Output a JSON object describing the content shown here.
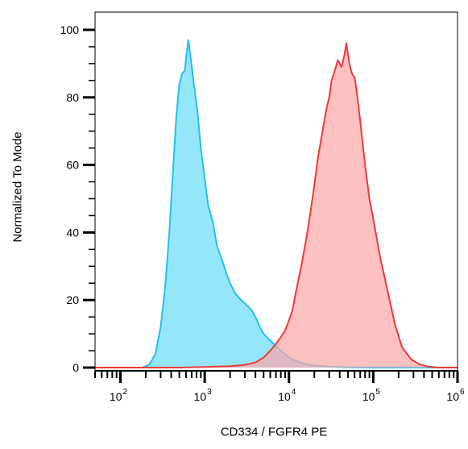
{
  "chart_data": {
    "type": "area",
    "xlabel": "CD334 / FGFR4 PE",
    "ylabel": "Normalized To Mode",
    "xscale": "log",
    "xlim": [
      50,
      1000000
    ],
    "ylim": [
      0,
      100
    ],
    "grid": false,
    "x_ticks": [
      {
        "value": 100,
        "base": "10",
        "exp": "2"
      },
      {
        "value": 1000,
        "base": "10",
        "exp": "3"
      },
      {
        "value": 10000,
        "base": "10",
        "exp": "4"
      },
      {
        "value": 100000,
        "base": "10",
        "exp": "5"
      },
      {
        "value": 1000000,
        "base": "10",
        "exp": "6"
      }
    ],
    "y_ticks": [
      "0",
      "20",
      "40",
      "60",
      "80",
      "100"
    ],
    "series": [
      {
        "stroke": "#22c0ee",
        "fill": "#96e6fa",
        "points": [
          [
            50,
            0
          ],
          [
            180,
            0
          ],
          [
            220,
            0.8
          ],
          [
            260,
            4
          ],
          [
            300,
            12
          ],
          [
            340,
            24
          ],
          [
            380,
            40
          ],
          [
            420,
            58
          ],
          [
            460,
            74
          ],
          [
            500,
            84
          ],
          [
            540,
            87
          ],
          [
            580,
            88
          ],
          [
            610,
            93
          ],
          [
            640,
            97
          ],
          [
            670,
            93
          ],
          [
            710,
            88
          ],
          [
            760,
            82
          ],
          [
            820,
            76
          ],
          [
            900,
            65
          ],
          [
            1000,
            56
          ],
          [
            1100,
            48
          ],
          [
            1250,
            43
          ],
          [
            1400,
            36
          ],
          [
            1600,
            32
          ],
          [
            1800,
            28
          ],
          [
            2000,
            25
          ],
          [
            2300,
            22
          ],
          [
            2700,
            20
          ],
          [
            3000,
            19
          ],
          [
            3300,
            18
          ],
          [
            3600,
            17
          ],
          [
            4000,
            15
          ],
          [
            4500,
            12
          ],
          [
            5000,
            10
          ],
          [
            6000,
            8
          ],
          [
            7000,
            6.5
          ],
          [
            8000,
            5
          ],
          [
            9000,
            4
          ],
          [
            10000,
            3
          ],
          [
            12000,
            2
          ],
          [
            15000,
            1.2
          ],
          [
            20000,
            0.6
          ],
          [
            30000,
            0.3
          ],
          [
            50000,
            0.1
          ],
          [
            100000,
            0
          ],
          [
            1000000,
            0
          ]
        ]
      },
      {
        "stroke": "#ee3a3a",
        "fill": "#fba7a9",
        "points": [
          [
            50,
            0
          ],
          [
            500,
            0
          ],
          [
            1000,
            0.2
          ],
          [
            2000,
            0.4
          ],
          [
            3000,
            0.8
          ],
          [
            4000,
            1.5
          ],
          [
            5000,
            3
          ],
          [
            6000,
            5
          ],
          [
            7000,
            7
          ],
          [
            8000,
            9
          ],
          [
            9000,
            11
          ],
          [
            10000,
            14
          ],
          [
            11000,
            17
          ],
          [
            12000,
            22
          ],
          [
            14000,
            30
          ],
          [
            16000,
            38
          ],
          [
            18000,
            46
          ],
          [
            20000,
            54
          ],
          [
            22000,
            62
          ],
          [
            25000,
            70
          ],
          [
            28000,
            77
          ],
          [
            30000,
            80
          ],
          [
            32000,
            85
          ],
          [
            35000,
            88
          ],
          [
            38000,
            91
          ],
          [
            42000,
            89
          ],
          [
            45000,
            92
          ],
          [
            48000,
            96
          ],
          [
            52000,
            90
          ],
          [
            56000,
            87
          ],
          [
            60000,
            86
          ],
          [
            65000,
            80
          ],
          [
            70000,
            73
          ],
          [
            80000,
            60
          ],
          [
            90000,
            50
          ],
          [
            100000,
            44
          ],
          [
            120000,
            33
          ],
          [
            150000,
            22
          ],
          [
            180000,
            13
          ],
          [
            220000,
            6
          ],
          [
            280000,
            2.5
          ],
          [
            350000,
            1
          ],
          [
            450000,
            0.3
          ],
          [
            600000,
            0
          ],
          [
            1000000,
            0
          ]
        ]
      }
    ]
  }
}
